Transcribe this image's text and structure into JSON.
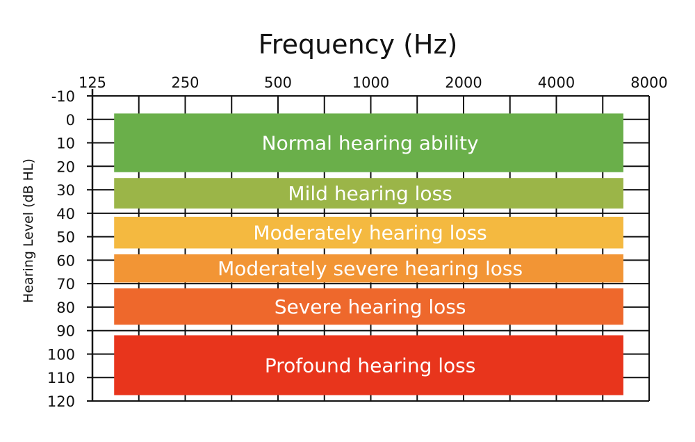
{
  "chart_data": {
    "type": "bar",
    "title": "Frequency (Hz)",
    "xlabel": "",
    "ylabel": "Hearing Level (dB HL)",
    "x_scale": "log2",
    "x_ticks": [
      "125",
      "250",
      "500",
      "1000",
      "2000",
      "4000",
      "8000"
    ],
    "x_tick_values": [
      125,
      250,
      500,
      1000,
      2000,
      4000,
      8000
    ],
    "xlim": [
      125,
      8000
    ],
    "ylim": [
      -10,
      120
    ],
    "y_inverted": true,
    "y_ticks": [
      "-10",
      "0",
      "10",
      "20",
      "30",
      "40",
      "50",
      "60",
      "70",
      "80",
      "90",
      "100",
      "110",
      "120"
    ],
    "y_tick_values": [
      -10,
      0,
      10,
      20,
      30,
      40,
      50,
      60,
      70,
      80,
      90,
      100,
      110,
      120
    ],
    "grid": true,
    "bands": [
      {
        "label": "Normal hearing ability",
        "db_range": [
          -2.5,
          22.5
        ],
        "freq_range": [
          147,
          6600
        ],
        "color": "#6aaf4a"
      },
      {
        "label": "Mild hearing loss",
        "db_range": [
          25,
          38
        ],
        "freq_range": [
          147,
          6600
        ],
        "color": "#9bb548"
      },
      {
        "label": "Moderately hearing loss",
        "db_range": [
          41.5,
          55
        ],
        "freq_range": [
          147,
          6600
        ],
        "color": "#f4b940"
      },
      {
        "label": "Moderately severe hearing loss",
        "db_range": [
          57.5,
          69.5
        ],
        "freq_range": [
          147,
          6600
        ],
        "color": "#f29535"
      },
      {
        "label": "Severe hearing loss",
        "db_range": [
          72,
          87.5
        ],
        "freq_range": [
          147,
          6600
        ],
        "color": "#ee682c"
      },
      {
        "label": "Profound hearing loss",
        "db_range": [
          92,
          117.5
        ],
        "freq_range": [
          147,
          6600
        ],
        "color": "#e8351c"
      }
    ]
  }
}
